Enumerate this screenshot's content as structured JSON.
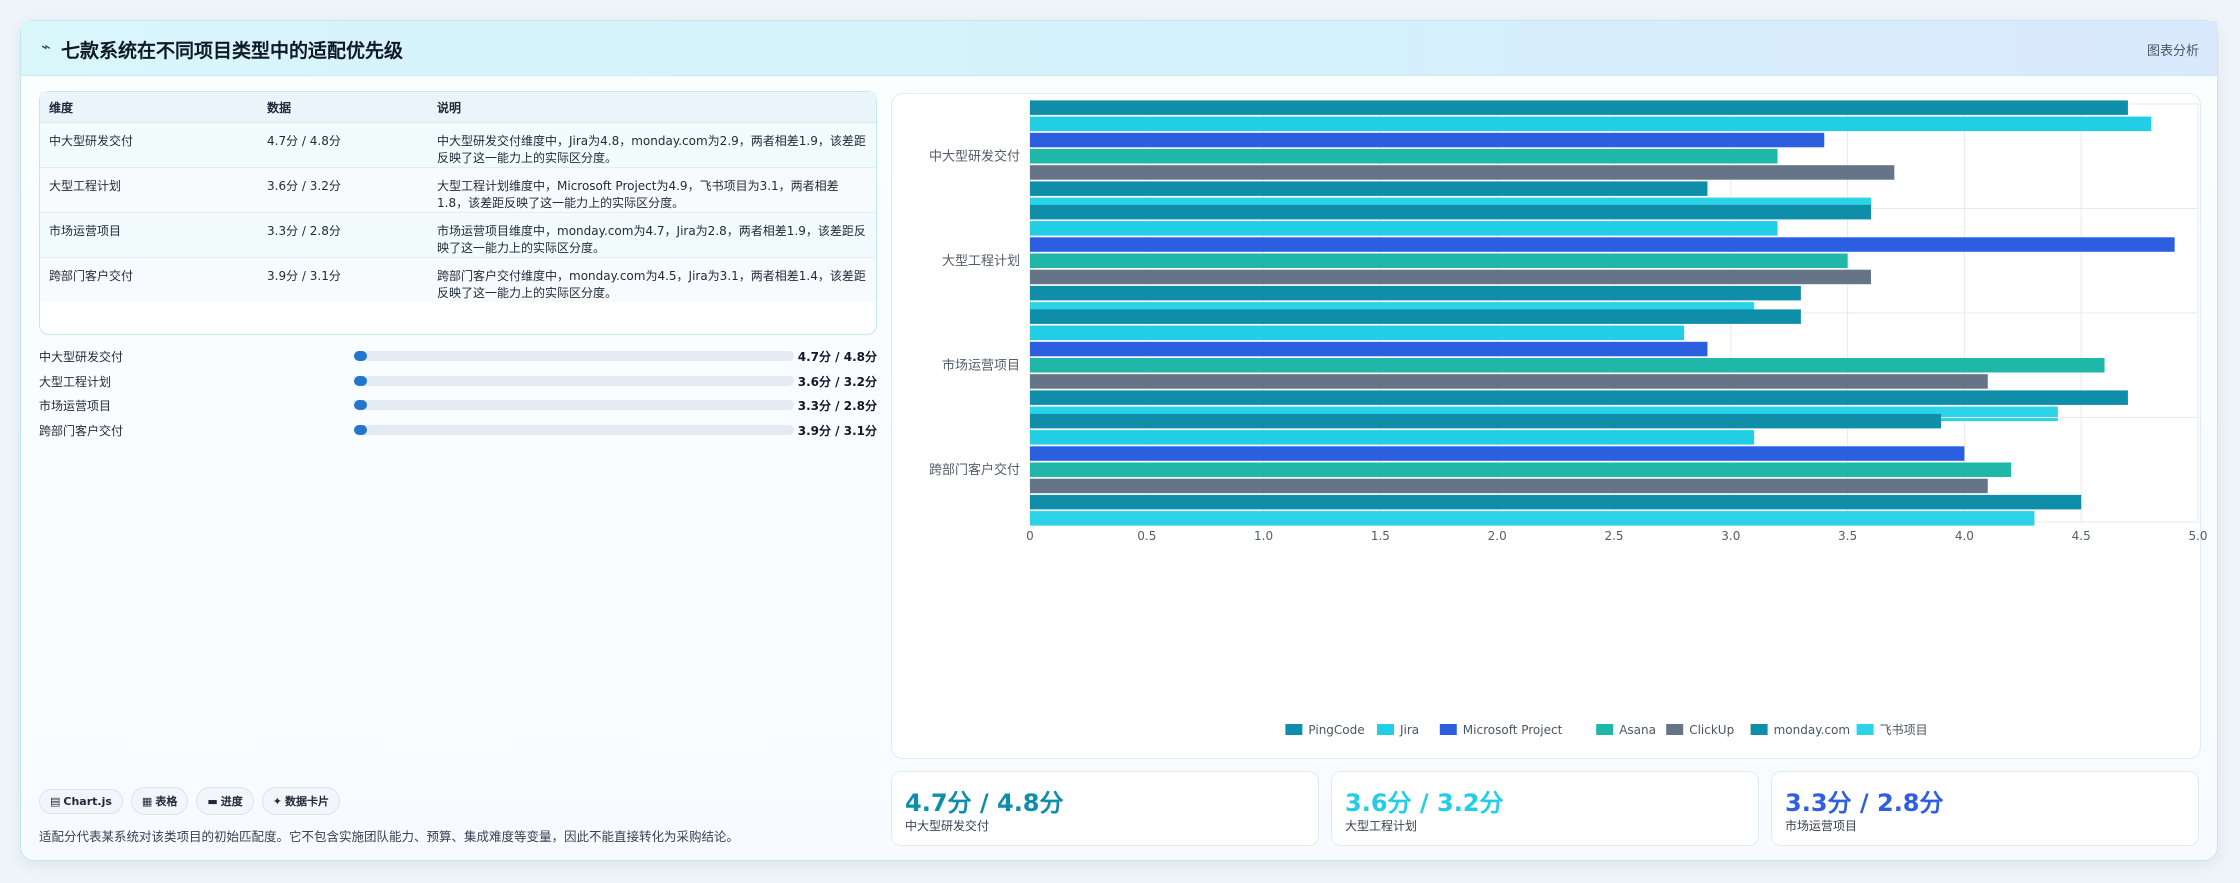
{
  "header": {
    "title": "七款系统在不同项目类型中的适配优先级",
    "tag": "图表分析"
  },
  "table": {
    "headers": [
      "维度",
      "数据",
      "说明"
    ],
    "rows": [
      {
        "dim": "中大型研发交付",
        "data": "4.7分 / 4.8分",
        "desc": "中大型研发交付维度中，Jira为4.8，monday.com为2.9，两者相差1.9，该差距反映了这一能力上的实际区分度。"
      },
      {
        "dim": "大型工程计划",
        "data": "3.6分 / 3.2分",
        "desc": "大型工程计划维度中，Microsoft Project为4.9，飞书项目为3.1，两者相差1.8，该差距反映了这一能力上的实际区分度。"
      },
      {
        "dim": "市场运营项目",
        "data": "3.3分 / 2.8分",
        "desc": "市场运营项目维度中，monday.com为4.7，Jira为2.8，两者相差1.9，该差距反映了这一能力上的实际区分度。"
      },
      {
        "dim": "跨部门客户交付",
        "data": "3.9分 / 3.1分",
        "desc": "跨部门客户交付维度中，monday.com为4.5，Jira为3.1，两者相差1.4，该差距反映了这一能力上的实际区分度。"
      }
    ]
  },
  "progress": [
    {
      "label": "中大型研发交付",
      "value": "4.7分 / 4.8分",
      "fill": 0.03
    },
    {
      "label": "大型工程计划",
      "value": "3.6分 / 3.2分",
      "fill": 0.03
    },
    {
      "label": "市场运营项目",
      "value": "3.3分 / 2.8分",
      "fill": 0.03
    },
    {
      "label": "跨部门客户交付",
      "value": "3.9分 / 3.1分",
      "fill": 0.03
    }
  ],
  "chips": [
    {
      "icon": "chart-icon",
      "glyph": "▤",
      "label": "Chart.js"
    },
    {
      "icon": "table-icon",
      "glyph": "▦",
      "label": "表格"
    },
    {
      "icon": "progress-icon",
      "glyph": "▬",
      "label": "进度"
    },
    {
      "icon": "sparkle-icon",
      "glyph": "✦",
      "label": "数据卡片"
    }
  ],
  "footnote": "适配分代表某系统对该类项目的初始匹配度。它不包含实施团队能力、预算、集成难度等变量，因此不能直接转化为采购结论。",
  "stats": [
    {
      "value": "4.7分 / 4.8分",
      "label": "中大型研发交付",
      "color": "#0e8ea8"
    },
    {
      "value": "3.6分 / 3.2分",
      "label": "大型工程计划",
      "color": "#22cde6"
    },
    {
      "value": "3.3分 / 2.8分",
      "label": "市场运营项目",
      "color": "#2f5fe0"
    }
  ],
  "chart_data": {
    "type": "bar",
    "orientation": "horizontal",
    "categories": [
      "中大型研发交付",
      "大型工程计划",
      "市场运营项目",
      "跨部门客户交付"
    ],
    "series": [
      {
        "name": "PingCode",
        "color": "#0e8ea8",
        "values": [
          4.7,
          3.6,
          3.3,
          3.9
        ]
      },
      {
        "name": "Jira",
        "color": "#22cde6",
        "values": [
          4.8,
          3.2,
          2.8,
          3.1
        ]
      },
      {
        "name": "Microsoft Project",
        "color": "#2b5fe0",
        "values": [
          3.4,
          4.9,
          2.9,
          4.0
        ]
      },
      {
        "name": "Asana",
        "color": "#1fb8a8",
        "values": [
          3.2,
          3.5,
          4.6,
          4.2
        ]
      },
      {
        "name": "ClickUp",
        "color": "#657486",
        "values": [
          3.7,
          3.6,
          4.1,
          4.1
        ]
      },
      {
        "name": "monday.com",
        "color": "#0e8ea8",
        "values": [
          2.9,
          3.3,
          4.7,
          4.5
        ]
      },
      {
        "name": "飞书项目",
        "color": "#2cd2e6",
        "values": [
          3.6,
          3.1,
          4.4,
          4.3
        ]
      }
    ],
    "xticks": [
      "0",
      "0.5",
      "1.0",
      "1.5",
      "2.0",
      "2.5",
      "3.0",
      "3.5",
      "4.0",
      "4.5",
      "5.0"
    ],
    "xlim": [
      0,
      5
    ],
    "grid": true,
    "legend": "bottom"
  }
}
